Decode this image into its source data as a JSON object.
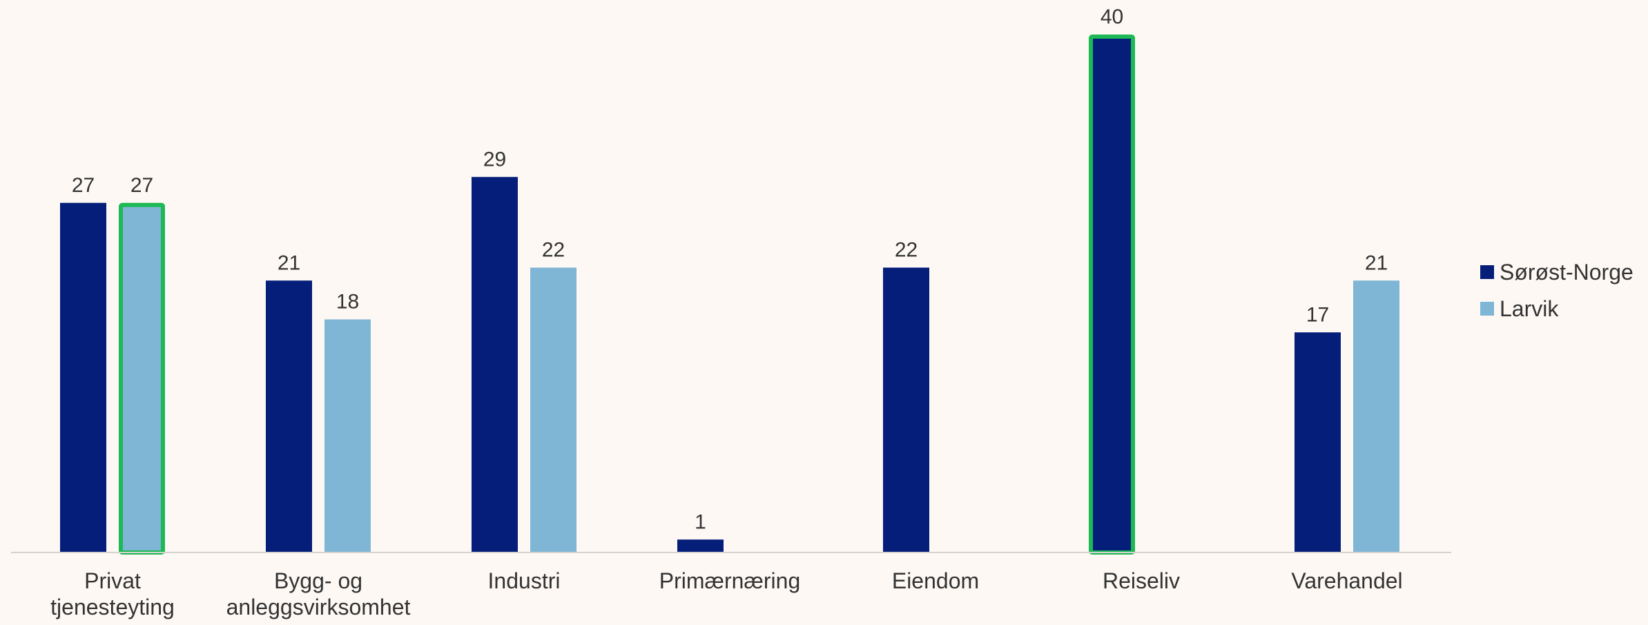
{
  "chart_data": {
    "type": "bar",
    "title": "",
    "xlabel": "",
    "ylabel": "",
    "ylim": [
      0,
      40
    ],
    "grid": false,
    "legend_position": "right",
    "categories": [
      [
        "Privat",
        "tjenesteyting"
      ],
      [
        "Bygg- og",
        "anleggsvirksomhet"
      ],
      [
        "Industri"
      ],
      [
        "Primærnæring"
      ],
      [
        "Eiendom"
      ],
      [
        "Reiseliv"
      ],
      [
        "Varehandel"
      ]
    ],
    "series": [
      {
        "name": "Sørøst-Norge",
        "color": "#041e7a",
        "values": [
          27,
          21,
          29,
          1,
          22,
          40,
          17
        ],
        "highlighted": [
          false,
          false,
          false,
          false,
          false,
          true,
          false
        ]
      },
      {
        "name": "Larvik",
        "color": "#7fb5d5",
        "values": [
          27,
          18,
          22,
          null,
          null,
          null,
          21
        ],
        "highlighted": [
          true,
          false,
          false,
          false,
          false,
          false,
          false
        ]
      }
    ],
    "highlight_color": "#1db954"
  }
}
